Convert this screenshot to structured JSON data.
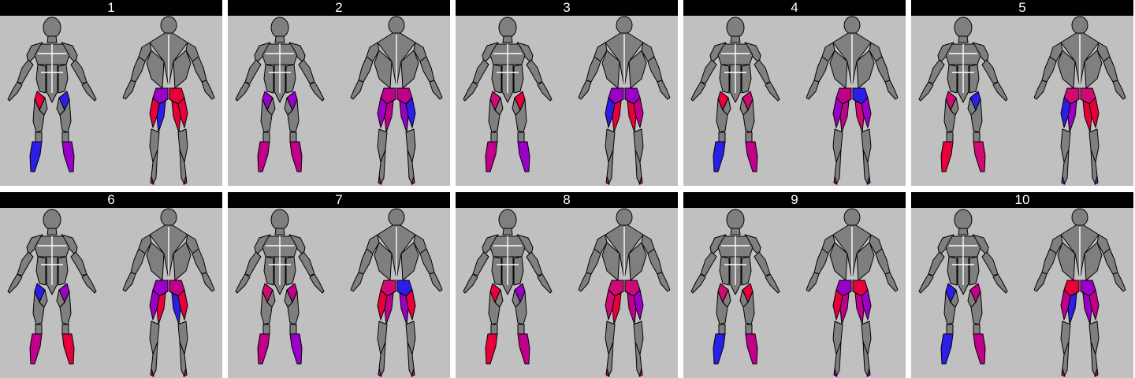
{
  "colors": {
    "background": "#c0c0c0",
    "header_bg": "#000000",
    "header_text": "#ffffff",
    "body_fill": "#7f7f7f",
    "body_outline": "#000000",
    "separator": "#ffffff",
    "red": "#e8003a",
    "magenta": "#c0008a",
    "purple": "#9a00c6",
    "blue": "#2a1ee8",
    "pink": "#cf0a74"
  },
  "panels": [
    {
      "label": "1",
      "front": {
        "thighL": "red",
        "thighR": "blue",
        "calfL": "blue",
        "calfR": "purple"
      },
      "back": {
        "gluteL": "purple",
        "gluteR": "red",
        "hamL1": "red",
        "hamL2": "blue",
        "hamR1": "red",
        "hamR2": "red",
        "calfL": "magenta",
        "calfR": "magenta"
      }
    },
    {
      "label": "2",
      "front": {
        "thighL": "purple",
        "thighR": "purple",
        "calfL": "magenta",
        "calfR": "magenta"
      },
      "back": {
        "gluteL": "magenta",
        "gluteR": "magenta",
        "hamL1": "purple",
        "hamL2": "magenta",
        "hamR1": "purple",
        "hamR2": "blue",
        "calfL": "magenta",
        "calfR": "magenta"
      }
    },
    {
      "label": "3",
      "front": {
        "thighL": "pink",
        "thighR": "red",
        "calfL": "magenta",
        "calfR": "purple"
      },
      "back": {
        "gluteL": "purple",
        "gluteR": "purple",
        "hamL1": "blue",
        "hamL2": "red",
        "hamR1": "red",
        "hamR2": "magenta",
        "calfL": "magenta",
        "calfR": "magenta"
      }
    },
    {
      "label": "4",
      "front": {
        "thighL": "red",
        "thighR": "pink",
        "calfL": "blue",
        "calfR": "magenta"
      },
      "back": {
        "gluteL": "magenta",
        "gluteR": "blue",
        "hamL1": "purple",
        "hamL2": "magenta",
        "hamR1": "pink",
        "hamR2": "purple",
        "calfL": "magenta",
        "calfR": "purple"
      }
    },
    {
      "label": "5",
      "front": {
        "thighL": "pink",
        "thighR": "blue",
        "calfL": "red",
        "calfR": "pink"
      },
      "back": {
        "gluteL": "pink",
        "gluteR": "pink",
        "hamL1": "blue",
        "hamL2": "purple",
        "hamR1": "red",
        "hamR2": "red",
        "calfL": "purple",
        "calfR": "purple"
      }
    },
    {
      "label": "6",
      "front": {
        "thighL": "blue",
        "thighR": "purple",
        "calfL": "magenta",
        "calfR": "red"
      },
      "back": {
        "gluteL": "purple",
        "gluteR": "magenta",
        "hamL1": "purple",
        "hamL2": "red",
        "hamR1": "blue",
        "hamR2": "red",
        "calfL": "magenta",
        "calfR": "magenta"
      }
    },
    {
      "label": "7",
      "front": {
        "thighL": "pink",
        "thighR": "magenta",
        "calfL": "magenta",
        "calfR": "purple"
      },
      "back": {
        "gluteL": "pink",
        "gluteR": "blue",
        "hamL1": "red",
        "hamL2": "magenta",
        "hamR1": "purple",
        "hamR2": "red",
        "calfL": "magenta",
        "calfR": "magenta"
      }
    },
    {
      "label": "8",
      "front": {
        "thighL": "red",
        "thighR": "purple",
        "calfL": "red",
        "calfR": "magenta"
      },
      "back": {
        "gluteL": "pink",
        "gluteR": "pink",
        "hamL1": "pink",
        "hamL2": "red",
        "hamR1": "magenta",
        "hamR2": "purple",
        "calfL": "magenta",
        "calfR": "magenta"
      }
    },
    {
      "label": "9",
      "front": {
        "thighL": "pink",
        "thighR": "red",
        "calfL": "blue",
        "calfR": "magenta"
      },
      "back": {
        "gluteL": "purple",
        "gluteR": "red",
        "hamL1": "red",
        "hamL2": "magenta",
        "hamR1": "magenta",
        "hamR2": "purple",
        "calfL": "purple",
        "calfR": "purple"
      }
    },
    {
      "label": "10",
      "front": {
        "thighL": "blue",
        "thighR": "magenta",
        "calfL": "blue",
        "calfR": "magenta"
      },
      "back": {
        "gluteL": "red",
        "gluteR": "purple",
        "hamL1": "magenta",
        "hamL2": "blue",
        "hamR1": "purple",
        "hamR2": "magenta",
        "calfL": "magenta",
        "calfR": "red"
      }
    }
  ]
}
